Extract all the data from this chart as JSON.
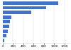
{
  "values": [
    1080,
    838,
    547,
    170,
    137,
    120,
    96,
    74,
    29
  ],
  "bar_color": "#4472c4",
  "background_color": "#ffffff",
  "xlim": [
    0,
    1300
  ],
  "bar_height": 0.72,
  "xtick_fontsize": 3.0,
  "grid_color": "#d9d9d9",
  "xticks": [
    0,
    200,
    400,
    600,
    800,
    1000,
    1200
  ]
}
